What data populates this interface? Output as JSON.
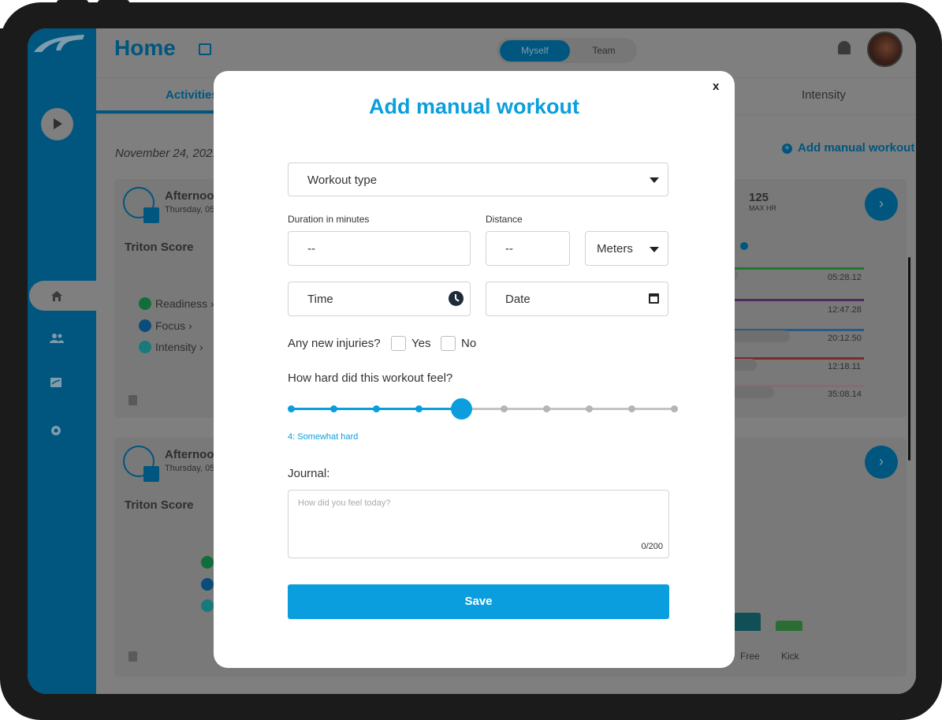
{
  "header": {
    "title": "Home",
    "segment": [
      "Myself",
      "Team"
    ]
  },
  "tabs": {
    "active": "Activities",
    "right": "Intensity"
  },
  "date_label": "November 24, 2021",
  "add_workout_link": "Add manual workout",
  "cards": [
    {
      "title": "Afternoon",
      "subtitle": "Thursday, 05",
      "score_label": "Triton Score",
      "max_hr_value": "125",
      "max_hr_label": "MAX HR"
    },
    {
      "title": "Afternoon",
      "subtitle": "Thursday, 05",
      "score_label": "Triton Score"
    }
  ],
  "legend": [
    "Readiness ›",
    "Focus ›",
    "Intensity ›"
  ],
  "split_times": [
    "05:28.12",
    "12:47.28",
    "20:12.50",
    "12:18.11",
    "35:08.14"
  ],
  "strokes": [
    "Free",
    "Kick"
  ],
  "modal": {
    "title": "Add manual workout",
    "close": "x",
    "workout_type": "Workout type",
    "duration_label": "Duration in minutes",
    "duration_value": "--",
    "distance_label": "Distance",
    "distance_value": "--",
    "unit": "Meters",
    "time": "Time",
    "date": "Date",
    "injuries_question": "Any new injuries?",
    "yes": "Yes",
    "no": "No",
    "effort_question": "How hard did this workout feel?",
    "effort": {
      "value": 4,
      "max": 10,
      "label": "4: Somewhat hard"
    },
    "journal_label": "Journal:",
    "journal_placeholder": "How did you feel today?",
    "journal_count": "0/200",
    "save": "Save"
  },
  "colors": {
    "primary": "#0a9ede",
    "brand_dark": "#00567f",
    "green": "#1db35a",
    "blue": "#0f7bc4",
    "teal": "#1aa9a9"
  }
}
